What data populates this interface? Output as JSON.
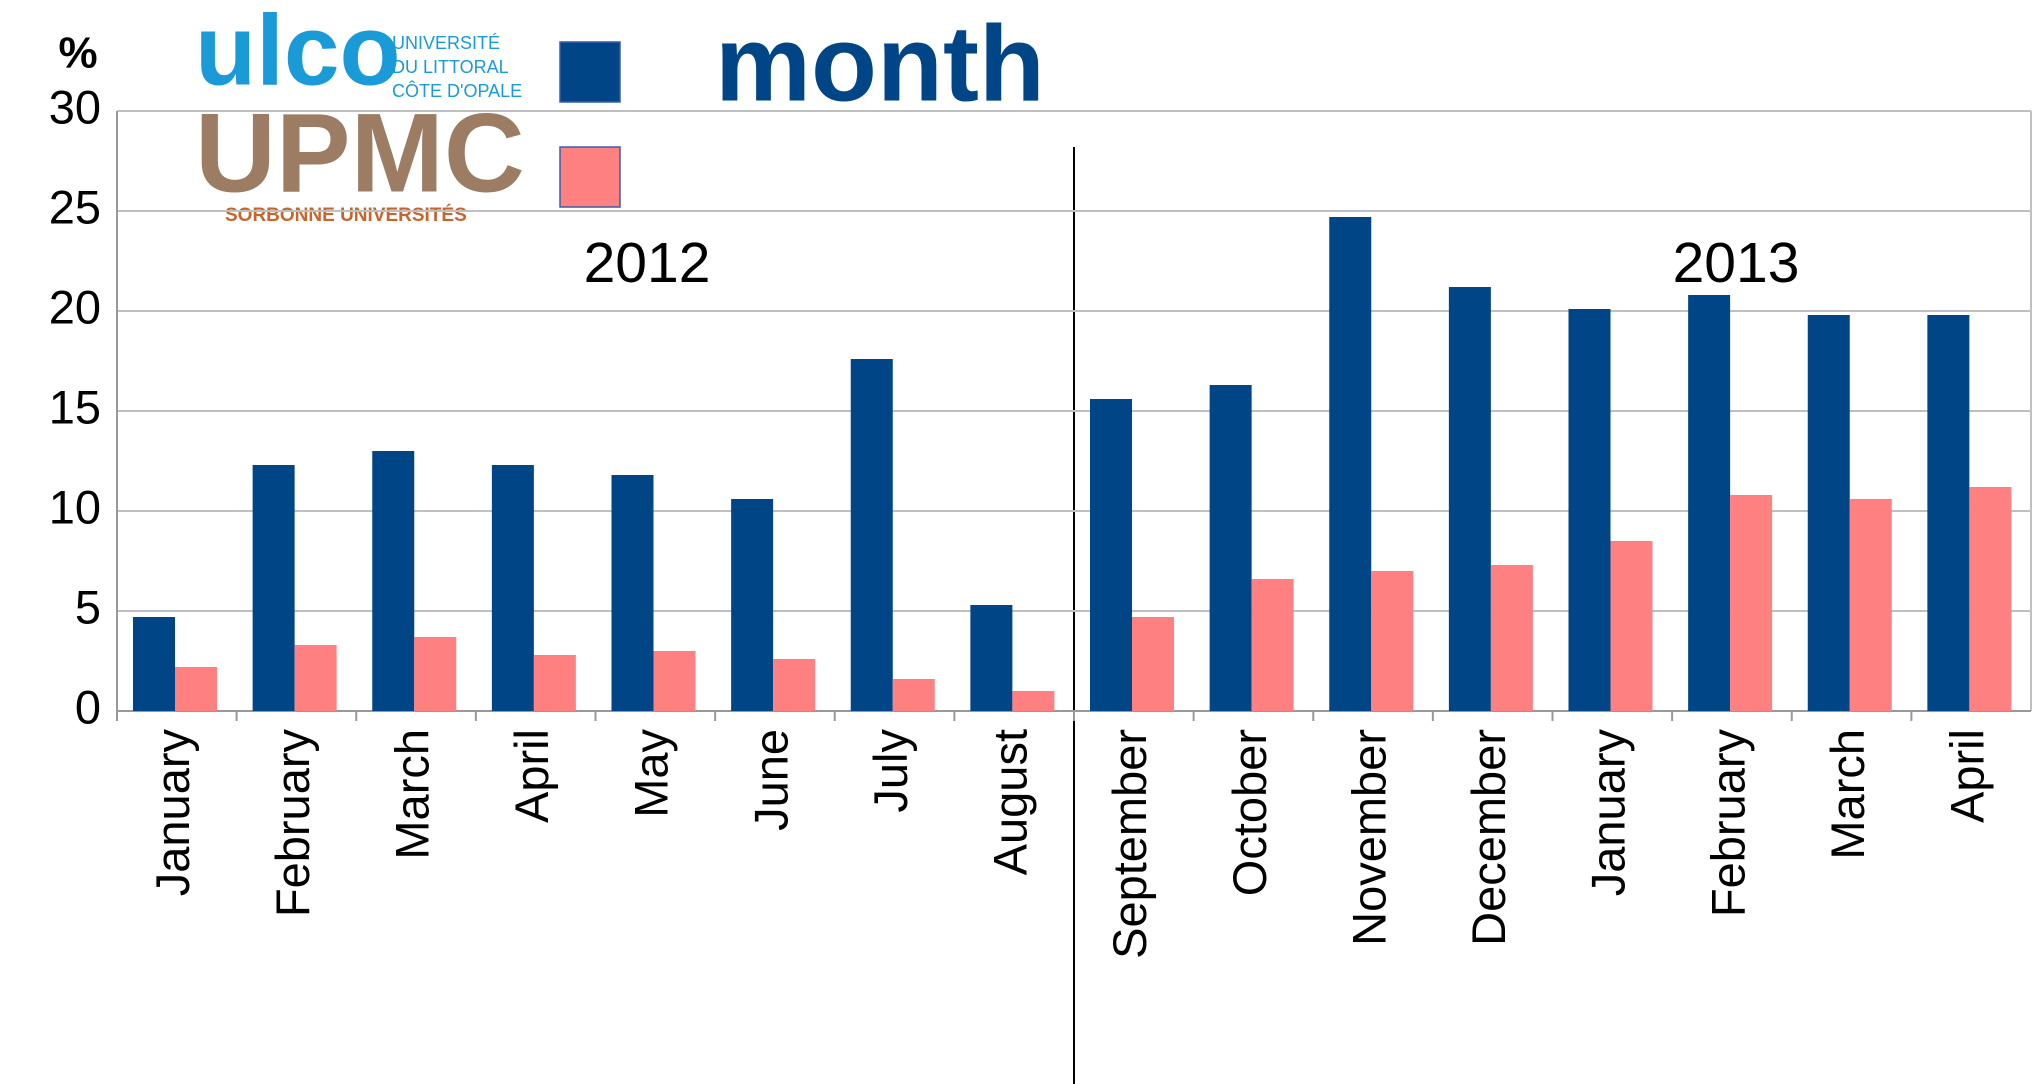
{
  "chart_data": {
    "type": "bar",
    "y_label": "%",
    "categories": [
      "January",
      "February",
      "March",
      "April",
      "May",
      "June",
      "July",
      "August",
      "September",
      "October",
      "November",
      "December",
      "January",
      "February",
      "March",
      "April"
    ],
    "series": [
      {
        "name": "month",
        "color": "#004586",
        "values": [
          4.7,
          12.3,
          13.0,
          12.3,
          11.8,
          10.6,
          17.6,
          5.3,
          15.6,
          16.3,
          24.7,
          21.2,
          20.1,
          20.8,
          19.8,
          19.8
        ]
      },
      {
        "color": "#ff8080",
        "values": [
          2.2,
          3.3,
          3.7,
          2.8,
          3.0,
          2.6,
          1.6,
          1.0,
          4.7,
          6.6,
          7.0,
          7.3,
          8.5,
          10.8,
          10.6,
          11.2
        ]
      }
    ],
    "ylim": [
      0,
      30
    ],
    "yticks": [
      0,
      5,
      10,
      15,
      20,
      25,
      30
    ],
    "grid": true,
    "annotations": [
      "2012",
      "2013"
    ],
    "logos": {
      "ulco": "ulco",
      "ulco_text": [
        "UNIVERSITÉ",
        "DU LITTORAL",
        "CÔTE D'OPALE"
      ],
      "upmc": "UPMC",
      "upmc_text": "SORBONNE UNIVERSITÉS"
    }
  }
}
